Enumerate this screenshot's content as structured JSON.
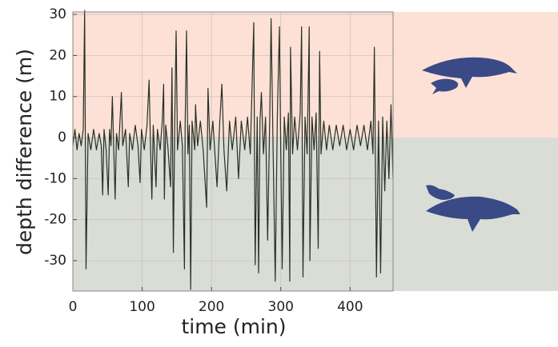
{
  "chart_data": {
    "type": "line",
    "x_label": "time (min)",
    "y_label": "depth difference (m)",
    "x": [
      0,
      3,
      6,
      9,
      12,
      15,
      17,
      19,
      22,
      26,
      30,
      34,
      38,
      41,
      43,
      45,
      48,
      51,
      53,
      55,
      57,
      59,
      61,
      63,
      66,
      70,
      72,
      76,
      80,
      82,
      86,
      90,
      94,
      97,
      99,
      103,
      107,
      110,
      112,
      114,
      116,
      120,
      122,
      126,
      129,
      131,
      132,
      134,
      137,
      141,
      142,
      143,
      145,
      147,
      149,
      151,
      155,
      158,
      161,
      162,
      164,
      166,
      168,
      170,
      172,
      176,
      177,
      180,
      184,
      188,
      193,
      195,
      198,
      202,
      205,
      208,
      212,
      215,
      218,
      222,
      226,
      230,
      235,
      239,
      243,
      248,
      252,
      256,
      261,
      263,
      266,
      268,
      270,
      272,
      275,
      278,
      281,
      284,
      286,
      289,
      292,
      295,
      298,
      300,
      302,
      305,
      308,
      311,
      313,
      314,
      317,
      320,
      324,
      328,
      330,
      332,
      335,
      338,
      341,
      342,
      345,
      348,
      351,
      354,
      356,
      358,
      362,
      366,
      370,
      375,
      380,
      385,
      390,
      395,
      400,
      405,
      410,
      415,
      420,
      425,
      430,
      433,
      435,
      438,
      441,
      444,
      447,
      450,
      453,
      456,
      459,
      462
    ],
    "values": [
      -2,
      2,
      -3,
      1,
      -2,
      2,
      31,
      -32,
      1,
      -3,
      2,
      -3,
      1,
      -2,
      -14,
      2,
      -3,
      -14,
      2,
      -2,
      10,
      -3,
      -15,
      1,
      -3,
      11,
      -2,
      2,
      -12,
      1,
      -3,
      3,
      -2,
      -11,
      2,
      -3,
      3,
      14,
      -2,
      -15,
      3,
      -12,
      2,
      -3,
      4,
      13,
      -15,
      3,
      -2,
      -12,
      3,
      17,
      -28,
      4,
      26,
      -3,
      4,
      -2,
      -32,
      3,
      26,
      -4,
      3,
      -37,
      4,
      -3,
      8,
      -2,
      4,
      -3,
      -17,
      12,
      -3,
      4,
      -4,
      -12,
      4,
      13,
      -3,
      -13,
      4,
      -3,
      5,
      -10,
      4,
      -3,
      5,
      -4,
      28,
      -31,
      5,
      -33,
      4,
      11,
      -4,
      5,
      -25,
      4,
      29,
      -4,
      -35,
      5,
      27,
      -4,
      -32,
      5,
      -3,
      6,
      -35,
      22,
      -4,
      5,
      -3,
      6,
      27,
      -34,
      5,
      -4,
      27,
      -30,
      5,
      -3,
      6,
      -27,
      21,
      -4,
      4,
      -3,
      3,
      -3,
      3,
      -2,
      3,
      -3,
      2,
      -3,
      3,
      -2,
      3,
      -3,
      4,
      -4,
      22,
      -34,
      4,
      -33,
      5,
      -13,
      4,
      -10,
      8,
      -10
    ],
    "color": "#273026",
    "positive_color": "#fde1d6",
    "negative_color": "#d9ddd5",
    "xlim": [
      0,
      462
    ],
    "ylim": [
      -37.4,
      30.6
    ],
    "xticks": [
      0,
      100,
      200,
      300,
      400
    ],
    "yticks": [
      -30,
      -20,
      -10,
      0,
      10,
      20,
      30
    ],
    "grid": true
  }
}
